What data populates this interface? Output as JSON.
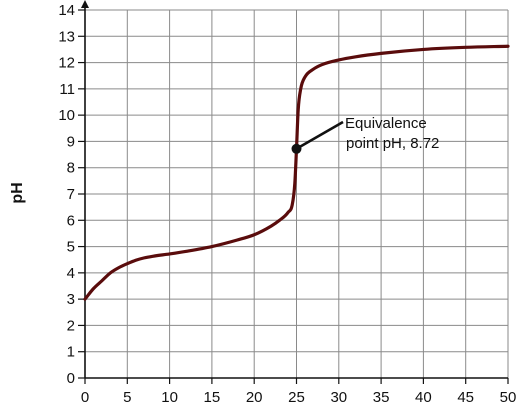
{
  "chart_data": {
    "type": "line",
    "title": "",
    "xlabel": "",
    "ylabel": "pH",
    "xlim": [
      0,
      50
    ],
    "ylim": [
      0,
      14
    ],
    "xticks": [
      0,
      5,
      10,
      15,
      20,
      25,
      30,
      35,
      40,
      45,
      50
    ],
    "yticks": [
      0,
      1,
      2,
      3,
      4,
      5,
      6,
      7,
      8,
      9,
      10,
      11,
      12,
      13,
      14
    ],
    "grid": true,
    "line_color": "#5a0c0c",
    "series": [
      {
        "x": [
          0,
          1,
          2,
          3,
          4,
          5,
          6,
          7,
          8,
          10,
          12,
          15,
          18,
          20,
          22,
          23,
          24,
          24.5,
          24.8,
          25,
          25.2,
          25.5,
          26,
          27,
          28,
          30,
          32,
          35,
          40,
          45,
          50
        ],
        "values": [
          3.0,
          3.4,
          3.7,
          4.0,
          4.2,
          4.35,
          4.48,
          4.57,
          4.63,
          4.72,
          4.82,
          5.0,
          5.25,
          5.45,
          5.78,
          6.0,
          6.3,
          6.6,
          7.4,
          8.72,
          10.2,
          11.0,
          11.45,
          11.75,
          11.92,
          12.1,
          12.22,
          12.35,
          12.5,
          12.58,
          12.62
        ]
      }
    ],
    "annotations": [
      {
        "text_lines": [
          "Equivalence",
          "point pH, 8.72"
        ],
        "point": [
          25,
          8.72
        ]
      }
    ]
  }
}
